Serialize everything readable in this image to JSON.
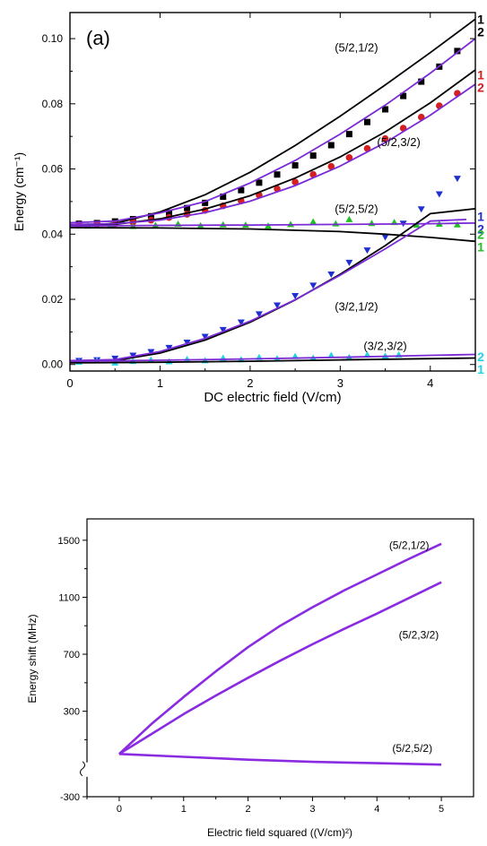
{
  "chart_data": [
    {
      "type": "scatter",
      "panel_label": "(a)",
      "xlabel": "DC electric field (V/cm)",
      "ylabel": "Energy (cm⁻¹)",
      "xlim": [
        0,
        4.5
      ],
      "ylim": [
        -0.002,
        0.108
      ],
      "xticks": [
        0,
        1,
        2,
        3,
        4
      ],
      "yticks": [
        0.0,
        0.02,
        0.04,
        0.06,
        0.08,
        0.1
      ],
      "ytick_labels": [
        "0.00",
        "0.02",
        "0.04",
        "0.06",
        "0.08",
        "0.10"
      ],
      "grid": false,
      "colors": {
        "fit_black": "#000000",
        "fit_purple": "#7a2bd6",
        "square": "#000000",
        "circle": "#d42020",
        "triangle_up": "#22c022",
        "triangle_down": "#2030d0",
        "triangle_cyan": "#22d4e6"
      },
      "curve_labels": [
        {
          "text": "(5/2,1/2)",
          "x": 3.18,
          "y": 0.096
        },
        {
          "text": "(5/2,3/2)",
          "x": 3.65,
          "y": 0.067
        },
        {
          "text": "(5/2,5/2)",
          "x": 3.18,
          "y": 0.0465
        },
        {
          "text": "(3/2,1/2)",
          "x": 3.18,
          "y": 0.0165
        },
        {
          "text": "(3/2,3/2)",
          "x": 3.5,
          "y": 0.0045
        }
      ],
      "side_labels": [
        {
          "num": "1",
          "den": "2",
          "color": "#000000",
          "y": 0.104
        },
        {
          "num": "1",
          "den": "2",
          "color": "#d42020",
          "y": 0.087
        },
        {
          "num": "1",
          "den": "2",
          "color": "#2030d0",
          "y": 0.0435
        },
        {
          "num": "2",
          "den": "1",
          "color": "#22c022",
          "y": 0.038
        },
        {
          "num": "2",
          "den": "1",
          "color": "#22d4e6",
          "y": 0.0005
        }
      ],
      "series": [
        {
          "marker": "square",
          "color": "#000000",
          "x": [
            0.1,
            0.3,
            0.5,
            0.7,
            0.9,
            1.1,
            1.3,
            1.5,
            1.7,
            1.9,
            2.1,
            2.3,
            2.5,
            2.7,
            2.9,
            3.1,
            3.3,
            3.5,
            3.7,
            3.9,
            4.1,
            4.3
          ],
          "y": [
            0.0432,
            0.0434,
            0.0439,
            0.0446,
            0.0455,
            0.0466,
            0.048,
            0.0496,
            0.0515,
            0.0535,
            0.0558,
            0.0583,
            0.0611,
            0.0641,
            0.0673,
            0.0707,
            0.0744,
            0.0783,
            0.0824,
            0.0868,
            0.0914,
            0.0962
          ]
        },
        {
          "marker": "circle",
          "color": "#d42020",
          "x": [
            0.1,
            0.3,
            0.5,
            0.7,
            0.9,
            1.1,
            1.3,
            1.5,
            1.7,
            1.9,
            2.1,
            2.3,
            2.5,
            2.7,
            2.9,
            3.1,
            3.3,
            3.5,
            3.7,
            3.9,
            4.1,
            4.3
          ],
          "y": [
            0.0428,
            0.043,
            0.0432,
            0.0437,
            0.0443,
            0.0451,
            0.0461,
            0.0473,
            0.0487,
            0.0502,
            0.052,
            0.0539,
            0.056,
            0.0583,
            0.0608,
            0.0635,
            0.0663,
            0.0693,
            0.0725,
            0.0759,
            0.0794,
            0.0832
          ]
        },
        {
          "marker": "triangle-up",
          "color": "#22c022",
          "x": [
            0.2,
            0.45,
            0.7,
            0.95,
            1.2,
            1.45,
            1.7,
            1.95,
            2.2,
            2.45,
            2.7,
            2.95,
            3.1,
            3.35,
            3.6,
            3.85,
            4.1,
            4.3
          ],
          "y": [
            0.0425,
            0.0428,
            0.0424,
            0.0427,
            0.0431,
            0.0426,
            0.0429,
            0.0428,
            0.0425,
            0.043,
            0.0438,
            0.0432,
            0.0445,
            0.0433,
            0.0436,
            0.0428,
            0.0431,
            0.0429
          ]
        },
        {
          "marker": "triangle-down",
          "color": "#2030d0",
          "x": [
            0.1,
            0.3,
            0.5,
            0.7,
            0.9,
            1.1,
            1.3,
            1.5,
            1.7,
            1.9,
            2.1,
            2.3,
            2.5,
            2.7,
            2.9,
            3.1,
            3.3,
            3.5,
            3.7,
            3.9,
            4.1,
            4.3
          ],
          "y": [
            0.0012,
            0.0014,
            0.0019,
            0.0028,
            0.0039,
            0.0052,
            0.0068,
            0.0086,
            0.0107,
            0.013,
            0.0155,
            0.0182,
            0.0211,
            0.0243,
            0.0277,
            0.0313,
            0.0351,
            0.0391,
            0.0433,
            0.0477,
            0.0523,
            0.0571
          ]
        },
        {
          "marker": "triangle-cyan",
          "color": "#22d4e6",
          "x": [
            0.1,
            0.3,
            0.5,
            0.7,
            0.9,
            1.1,
            1.3,
            1.5,
            1.7,
            1.9,
            2.1,
            2.3,
            2.5,
            2.7,
            2.9,
            3.1,
            3.3,
            3.5,
            3.65
          ],
          "y": [
            0.0008,
            0.0012,
            0.0005,
            0.001,
            0.0014,
            0.0009,
            0.0016,
            0.0012,
            0.002,
            0.0015,
            0.0022,
            0.0018,
            0.0025,
            0.002,
            0.0028,
            0.0022,
            0.003,
            0.0026,
            0.003
          ]
        }
      ],
      "fit_curves": [
        {
          "color": "#000000",
          "x": [
            0,
            0.5,
            1,
            1.5,
            2,
            2.5,
            3,
            3.5,
            4,
            4.5
          ],
          "y": [
            0.0425,
            0.0433,
            0.0468,
            0.0521,
            0.059,
            0.0672,
            0.0762,
            0.0858,
            0.0957,
            0.106
          ]
        },
        {
          "color": "#7a2bd6",
          "x": [
            0,
            0.5,
            1,
            1.5,
            2,
            2.5,
            3,
            3.5,
            4,
            4.5
          ],
          "y": [
            0.0435,
            0.044,
            0.0465,
            0.05,
            0.0557,
            0.0626,
            0.0707,
            0.0796,
            0.0894,
            0.1
          ]
        },
        {
          "color": "#000000",
          "x": [
            0,
            0.5,
            1,
            1.5,
            2,
            2.5,
            3,
            3.5,
            4,
            4.5
          ],
          "y": [
            0.0425,
            0.043,
            0.0447,
            0.0477,
            0.0518,
            0.0572,
            0.0637,
            0.0714,
            0.0803,
            0.0904
          ]
        },
        {
          "color": "#7a2bd6",
          "x": [
            0,
            0.5,
            1,
            1.5,
            2,
            2.5,
            3,
            3.5,
            4,
            4.5
          ],
          "y": [
            0.043,
            0.0432,
            0.0443,
            0.0466,
            0.0501,
            0.0549,
            0.0609,
            0.0681,
            0.0765,
            0.086
          ]
        },
        {
          "color": "#000000",
          "x": [
            0,
            1,
            2,
            3,
            3.5,
            4,
            4.5
          ],
          "y": [
            0.042,
            0.0419,
            0.0416,
            0.0408,
            0.04,
            0.039,
            0.0378
          ]
        },
        {
          "color": "#7a2bd6",
          "x": [
            0,
            1,
            2,
            3,
            4,
            4.5
          ],
          "y": [
            0.0425,
            0.0427,
            0.0428,
            0.043,
            0.0432,
            0.0434
          ]
        },
        {
          "color": "#000000",
          "x": [
            0,
            0.5,
            1,
            1.5,
            2,
            2.5,
            3,
            3.5,
            4,
            4.5
          ],
          "y": [
            0.001,
            0.0012,
            0.0035,
            0.0075,
            0.013,
            0.0198,
            0.0277,
            0.0365,
            0.0463,
            0.0478
          ]
        },
        {
          "color": "#7a2bd6",
          "x": [
            0,
            0.5,
            1,
            1.5,
            2,
            2.5,
            3,
            3.5,
            4,
            4.4
          ],
          "y": [
            0.0012,
            0.0015,
            0.004,
            0.008,
            0.0133,
            0.0199,
            0.0274,
            0.0355,
            0.044,
            0.0445
          ]
        },
        {
          "color": "#000000",
          "x": [
            0,
            1,
            2,
            3,
            4,
            4.5
          ],
          "y": [
            0.0005,
            0.0007,
            0.001,
            0.0014,
            0.0018,
            0.002
          ]
        },
        {
          "color": "#7a2bd6",
          "x": [
            0,
            1,
            2,
            3,
            4,
            4.5
          ],
          "y": [
            0.001,
            0.0013,
            0.0017,
            0.0022,
            0.0028,
            0.0031
          ]
        }
      ]
    },
    {
      "type": "line",
      "xlabel": "Electric field squared ((V/cm)²)",
      "ylabel": "Energy shift (MHz)",
      "xlim": [
        -0.5,
        5.5
      ],
      "ylim": [
        -300,
        1650
      ],
      "xticks": [
        0,
        1,
        2,
        3,
        4,
        5
      ],
      "yticks": [
        -300,
        300,
        700,
        1100,
        1500
      ],
      "grid": false,
      "axis_break": "y",
      "line_color": "#8a2be2",
      "series": [
        {
          "name": "(5/2,1/2)",
          "x": [
            0,
            0.5,
            1,
            1.5,
            2,
            2.5,
            3,
            3.5,
            4,
            4.5,
            5
          ],
          "y": [
            0,
            210,
            400,
            580,
            750,
            900,
            1030,
            1150,
            1260,
            1370,
            1475
          ]
        },
        {
          "name": "(5/2,3/2)",
          "x": [
            0,
            0.5,
            1,
            1.5,
            2,
            2.5,
            3,
            3.5,
            4,
            4.5,
            5
          ],
          "y": [
            0,
            140,
            280,
            410,
            535,
            655,
            770,
            880,
            985,
            1095,
            1205
          ]
        },
        {
          "name": "(5/2,5/2)",
          "x": [
            0,
            1,
            2,
            3,
            4,
            5
          ],
          "y": [
            0,
            -20,
            -40,
            -55,
            -65,
            -75
          ]
        }
      ],
      "curve_label_positions": [
        {
          "x": 4.5,
          "y": 1440
        },
        {
          "x": 4.65,
          "y": 810
        },
        {
          "x": 4.55,
          "y": 15
        }
      ]
    }
  ]
}
